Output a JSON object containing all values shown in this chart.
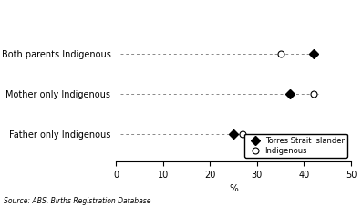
{
  "categories": [
    "Father only Indigenous",
    "Mother only Indigenous",
    "Both parents Indigenous"
  ],
  "torres_strait": [
    25,
    37,
    42
  ],
  "indigenous": [
    27,
    42,
    35
  ],
  "xlim": [
    0,
    50
  ],
  "xticks": [
    0,
    10,
    20,
    30,
    40,
    50
  ],
  "xlabel": "%",
  "legend_labels": [
    "Torres Strait Islander",
    "Indigenous"
  ],
  "source_text": "Source: ABS, Births Registration Database",
  "background_color": "#ffffff",
  "dashed_color": "#888888"
}
